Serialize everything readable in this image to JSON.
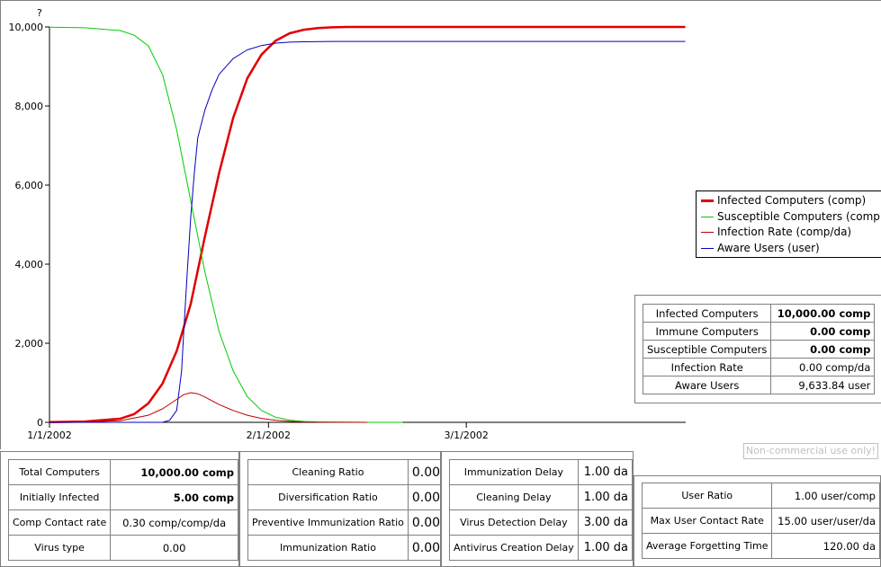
{
  "chart": {
    "y_title": "?",
    "y_ticks": [
      "0",
      "2,000",
      "4,000",
      "6,000",
      "8,000",
      "10,000"
    ],
    "x_ticks": [
      "1/1/2002",
      "2/1/2002",
      "3/1/2002"
    ],
    "legend": [
      {
        "label": "Infected Computers (comp)",
        "color": "#e00000"
      },
      {
        "label": "Susceptible Computers (comp",
        "color": "#00cc00"
      },
      {
        "label": "Infection Rate (comp/da)",
        "color": "#c00000"
      },
      {
        "label": "Aware Users (user)",
        "color": "#0000c0"
      }
    ]
  },
  "chart_data": {
    "type": "line",
    "x_unit": "days from 1/1/2002",
    "ylim": [
      0,
      10000
    ],
    "x_ticks": [
      "1/1/2002",
      "2/1/2002",
      "3/1/2002"
    ],
    "series": [
      {
        "name": "Infected Computers (comp)",
        "color": "#e00000",
        "x": [
          0,
          5,
          10,
          12,
          14,
          16,
          18,
          20,
          22,
          24,
          26,
          28,
          30,
          32,
          34,
          36,
          38,
          40,
          42,
          45,
          50,
          60,
          70,
          80,
          90
        ],
        "y": [
          5,
          20,
          90,
          210,
          480,
          980,
          1800,
          3000,
          4700,
          6300,
          7700,
          8700,
          9300,
          9650,
          9840,
          9930,
          9970,
          9990,
          10000,
          10000,
          10000,
          10000,
          10000,
          10000,
          10000
        ]
      },
      {
        "name": "Susceptible Computers (comp",
        "color": "#00cc00",
        "x": [
          0,
          5,
          10,
          12,
          14,
          16,
          18,
          20,
          22,
          24,
          26,
          28,
          30,
          32,
          34,
          36,
          38,
          40,
          42,
          45,
          50
        ],
        "y": [
          9995,
          9980,
          9910,
          9790,
          9520,
          8800,
          7400,
          5600,
          3800,
          2300,
          1300,
          650,
          300,
          130,
          55,
          22,
          10,
          4,
          2,
          0,
          0
        ]
      },
      {
        "name": "Infection Rate (comp/da)",
        "color": "#c00000",
        "x": [
          0,
          5,
          10,
          14,
          16,
          18,
          19,
          20,
          21,
          22,
          24,
          26,
          28,
          30,
          32,
          34,
          36,
          40,
          45
        ],
        "y": [
          0,
          5,
          40,
          180,
          340,
          580,
          700,
          750,
          720,
          640,
          450,
          300,
          180,
          100,
          50,
          25,
          10,
          2,
          0
        ]
      },
      {
        "name": "Aware Users (user)",
        "color": "#0000c0",
        "x": [
          0,
          16,
          17,
          18,
          18.7,
          19,
          19.5,
          20,
          20.5,
          21,
          22,
          23,
          24,
          26,
          28,
          30,
          32,
          34,
          36,
          40,
          50,
          60,
          70,
          80,
          90
        ],
        "y": [
          0,
          0,
          50,
          300,
          1300,
          2300,
          3800,
          5200,
          6300,
          7200,
          7900,
          8400,
          8800,
          9200,
          9420,
          9530,
          9590,
          9615,
          9625,
          9633,
          9634,
          9634,
          9634,
          9634,
          9634
        ]
      }
    ]
  },
  "outputs": [
    {
      "label": "Infected Computers",
      "value": "10,000.00 comp",
      "bold": true
    },
    {
      "label": "Immune Computers",
      "value": "0.00 comp",
      "bold": true
    },
    {
      "label": "Susceptible Computers",
      "value": "0.00 comp",
      "bold": true
    },
    {
      "label": "Infection Rate",
      "value": "0.00 comp/da",
      "bold": false
    },
    {
      "label": "Aware Users",
      "value": "9,633.84 user",
      "bold": false
    }
  ],
  "watermark": "Non-commercial use only!",
  "panel1": [
    {
      "label": "Total Computers",
      "value": "10,000.00 comp",
      "bold": true
    },
    {
      "label": "Initially Infected",
      "value": "5.00 comp",
      "bold": true
    },
    {
      "label": "Comp Contact rate",
      "value": "0.30 comp/comp/da",
      "bold": false
    },
    {
      "label": "Virus type",
      "value": "0.00",
      "bold": false
    }
  ],
  "panel2": [
    {
      "label": "Cleaning Ratio",
      "value": "0.00"
    },
    {
      "label": "Diversification Ratio",
      "value": "0.00"
    },
    {
      "label": "Preventive Immunization Ratio",
      "value": "0.00"
    },
    {
      "label": "Immunization Ratio",
      "value": "0.00"
    }
  ],
  "panel3": [
    {
      "label": "Immunization Delay",
      "value": "1.00 da"
    },
    {
      "label": "Cleaning Delay",
      "value": "1.00 da"
    },
    {
      "label": "Virus Detection Delay",
      "value": "3.00 da"
    },
    {
      "label": "Antivirus Creation Delay",
      "value": "1.00 da"
    }
  ],
  "panel4": [
    {
      "label": "User Ratio",
      "value": "1.00 user/comp"
    },
    {
      "label": "Max User Contact Rate",
      "value": "15.00 user/user/da"
    },
    {
      "label": "Average Forgetting Time",
      "value": "120.00 da"
    }
  ]
}
